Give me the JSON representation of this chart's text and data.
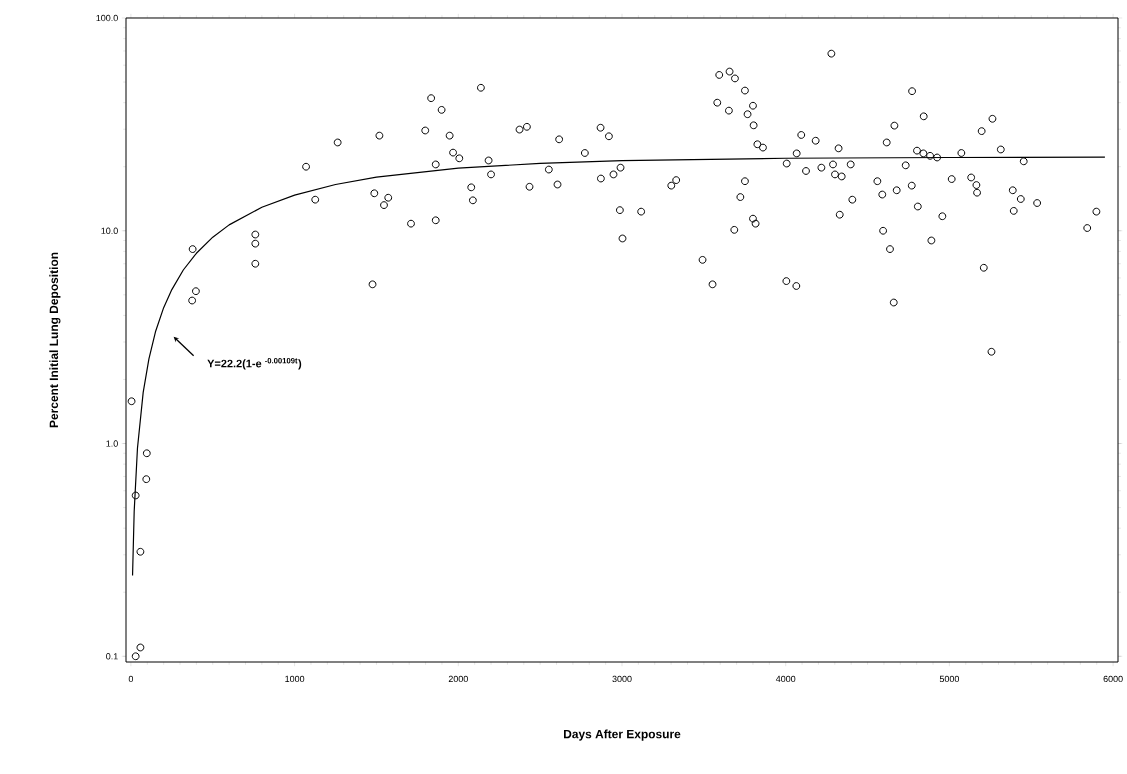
{
  "chart_data": {
    "type": "scatter",
    "xlabel": "Days After Exposure",
    "ylabel": "Percent Initial Lung Deposition",
    "log": "y",
    "marker": "circle",
    "grid": false,
    "xlim": [
      -30,
      6030
    ],
    "ylim": [
      0.094,
      100
    ],
    "xticks": [
      0,
      1000,
      2000,
      3000,
      4000,
      5000,
      6000
    ],
    "yticks": [
      {
        "value": 0.1,
        "label": "0.1"
      },
      {
        "value": 1,
        "label": "1.0"
      },
      {
        "value": 10,
        "label": "10.0"
      },
      {
        "value": 100,
        "label": "100.0"
      }
    ],
    "annotations": [
      "Y=22.2(1-e $^{-0.00109t}$)"
    ],
    "series": [
      {
        "color": "#000000",
        "x": [
          4,
          29,
          97,
          94,
          58,
          29,
          58,
          377,
          397,
          374,
          760,
          760,
          760,
          1070,
          1126,
          1263,
          1487,
          1476,
          1518,
          1546,
          1572,
          1711,
          1798,
          1834,
          1862,
          1862,
          1898,
          1947,
          1968,
          2006,
          2079,
          2089,
          2138,
          2185,
          2200,
          2374,
          2419,
          2616,
          2553,
          2435,
          2606,
          2773,
          2869,
          2920,
          2871,
          2948,
          2991,
          2987,
          3117,
          3003,
          3301,
          3331,
          3492,
          3553,
          3594,
          3657,
          3690,
          3582,
          3653,
          3751,
          3800,
          3767,
          3804,
          3827,
          3861,
          3751,
          3723,
          3800,
          3816,
          3686,
          4004,
          4065,
          4006,
          4067,
          4095,
          4183,
          4124,
          4218,
          4279,
          4323,
          4289,
          4301,
          4342,
          4397,
          4407,
          4330,
          4595,
          4637,
          4660,
          4560,
          4590,
          4678,
          4770,
          4807,
          4733,
          4617,
          4664,
          4772,
          4843,
          4802,
          4841,
          4882,
          4925,
          4957,
          4890,
          5014,
          5073,
          5133,
          5165,
          5169,
          5210,
          5197,
          5263,
          5257,
          5314,
          5387,
          5436,
          5393,
          5454,
          5536,
          5842,
          5898
        ],
        "values": [
          1.58,
          0.57,
          0.9,
          0.68,
          0.31,
          0.1,
          0.11,
          8.2,
          5.2,
          4.7,
          9.6,
          8.7,
          7.0,
          20,
          14,
          26,
          15,
          5.6,
          28,
          13.2,
          14.3,
          10.8,
          29.6,
          42,
          20.5,
          11.2,
          37,
          28,
          23.3,
          21.9,
          16,
          13.9,
          47,
          21.4,
          18.4,
          29.9,
          30.8,
          26.9,
          19.4,
          16.1,
          16.5,
          23.2,
          30.5,
          27.8,
          17.6,
          18.4,
          19.8,
          12.5,
          12.3,
          9.2,
          16.3,
          17.3,
          7.3,
          5.6,
          54,
          56,
          52,
          40,
          36.7,
          45.6,
          38.7,
          35.3,
          31.3,
          25.5,
          24.6,
          17.1,
          14.4,
          11.4,
          10.8,
          10.1,
          5.8,
          5.5,
          20.7,
          23.1,
          28.2,
          26.5,
          19.1,
          19.8,
          68,
          24.4,
          20.5,
          18.4,
          18.0,
          20.5,
          14.0,
          11.9,
          10.0,
          8.2,
          4.6,
          17.1,
          14.8,
          15.5,
          16.3,
          13.0,
          20.3,
          26,
          31.2,
          45.3,
          34.5,
          23.8,
          23.1,
          22.5,
          22.1,
          11.7,
          9.0,
          17.5,
          23.2,
          17.8,
          16.4,
          15.1,
          6.7,
          29.4,
          33.6,
          2.7,
          24.1,
          15.5,
          14.1,
          12.4,
          21.2,
          13.5,
          10.3,
          12.3
        ]
      },
      {
        "type": "line",
        "marker": "none",
        "color": "#000000",
        "x": [
          10,
          20,
          40,
          75,
          110,
          150,
          200,
          250,
          320,
          400,
          500,
          600,
          800,
          1000,
          1250,
          1500,
          2000,
          2500,
          3000,
          4000,
          5000,
          5950
        ],
        "values": [
          0.24,
          0.48,
          0.95,
          1.74,
          2.5,
          3.35,
          4.35,
          5.29,
          6.54,
          7.84,
          9.33,
          10.66,
          12.9,
          14.7,
          16.5,
          17.87,
          19.69,
          20.74,
          21.36,
          21.92,
          22.1,
          22.17
        ]
      }
    ]
  }
}
